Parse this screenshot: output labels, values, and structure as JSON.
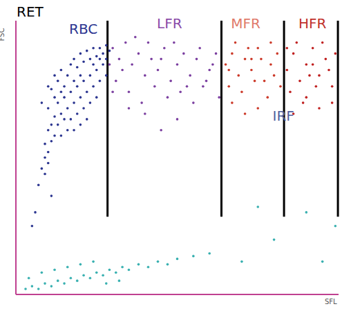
{
  "chart_data": {
    "type": "scatter",
    "title": "RET",
    "x_label": "SFL",
    "y_label": "FSC",
    "xlim": [
      0,
      100
    ],
    "ylim": [
      0,
      100
    ],
    "xticks": [
      0,
      20,
      40,
      60,
      80,
      100
    ],
    "yticks": [
      0,
      10,
      20,
      30,
      40,
      50,
      60,
      70,
      80,
      90,
      100
    ],
    "tick_labels": false,
    "grid": false,
    "gates": {
      "x": [
        28.4,
        63.7,
        83.1,
        99.8
      ],
      "y_range": [
        28.4,
        100
      ],
      "color": "#000000"
    },
    "series": [
      {
        "name": "RBC",
        "color": "#2b3590",
        "label_at": [
          20.9,
          97
        ],
        "points": [
          [
            10,
            60
          ],
          [
            11,
            62
          ],
          [
            12,
            65
          ],
          [
            10,
            68
          ],
          [
            13,
            70
          ],
          [
            12,
            72
          ],
          [
            14,
            74
          ],
          [
            11,
            75
          ],
          [
            15,
            76
          ],
          [
            13,
            78
          ],
          [
            16,
            80
          ],
          [
            14,
            82
          ],
          [
            17,
            84
          ],
          [
            18,
            86
          ],
          [
            20,
            88
          ],
          [
            22,
            89
          ],
          [
            24,
            90
          ],
          [
            26,
            90
          ],
          [
            28,
            91
          ],
          [
            19,
            83
          ],
          [
            21,
            85
          ],
          [
            23,
            86
          ],
          [
            25,
            87
          ],
          [
            27,
            88
          ],
          [
            15,
            72
          ],
          [
            17,
            74
          ],
          [
            19,
            76
          ],
          [
            21,
            78
          ],
          [
            23,
            80
          ],
          [
            25,
            82
          ],
          [
            27,
            84
          ],
          [
            16,
            68
          ],
          [
            18,
            70
          ],
          [
            20,
            72
          ],
          [
            22,
            74
          ],
          [
            24,
            76
          ],
          [
            26,
            78
          ],
          [
            28,
            80
          ],
          [
            17,
            64
          ],
          [
            19,
            66
          ],
          [
            21,
            68
          ],
          [
            23,
            70
          ],
          [
            25,
            72
          ],
          [
            18,
            60
          ],
          [
            20,
            62
          ],
          [
            22,
            64
          ],
          [
            9,
            55
          ],
          [
            9,
            50
          ],
          [
            10,
            52
          ],
          [
            11,
            56
          ],
          [
            8,
            46
          ],
          [
            9,
            44
          ],
          [
            10,
            48
          ],
          [
            12,
            58
          ],
          [
            13,
            62
          ],
          [
            14,
            66
          ],
          [
            15,
            64
          ],
          [
            16,
            60
          ],
          [
            14,
            58
          ],
          [
            24,
            84
          ],
          [
            26,
            86
          ],
          [
            20,
            80
          ],
          [
            18,
            78
          ],
          [
            12,
            80
          ],
          [
            10,
            76
          ],
          [
            8,
            70
          ],
          [
            7,
            40
          ],
          [
            6,
            30
          ],
          [
            5,
            25
          ],
          [
            11,
            36
          ],
          [
            28,
            86
          ],
          [
            29,
            89
          ]
        ]
      },
      {
        "name": "LFR",
        "color": "#7b3fa0",
        "label_at": [
          47.6,
          99
        ],
        "points": [
          [
            30,
            90
          ],
          [
            32,
            86
          ],
          [
            34,
            92
          ],
          [
            36,
            84
          ],
          [
            38,
            88
          ],
          [
            40,
            80
          ],
          [
            42,
            86
          ],
          [
            44,
            82
          ],
          [
            46,
            90
          ],
          [
            48,
            78
          ],
          [
            50,
            84
          ],
          [
            52,
            88
          ],
          [
            54,
            80
          ],
          [
            56,
            86
          ],
          [
            58,
            76
          ],
          [
            60,
            82
          ],
          [
            62,
            88
          ],
          [
            31,
            78
          ],
          [
            35,
            74
          ],
          [
            39,
            70
          ],
          [
            43,
            76
          ],
          [
            47,
            72
          ],
          [
            51,
            74
          ],
          [
            55,
            70
          ],
          [
            59,
            78
          ],
          [
            63,
            72
          ],
          [
            33,
            82
          ],
          [
            37,
            94
          ],
          [
            41,
            92
          ],
          [
            45,
            86
          ],
          [
            49,
            92
          ],
          [
            53,
            76
          ],
          [
            57,
            90
          ],
          [
            61,
            84
          ],
          [
            29,
            84
          ],
          [
            30,
            74
          ],
          [
            40,
            66
          ],
          [
            50,
            64
          ],
          [
            45,
            60
          ],
          [
            35,
            68
          ]
        ]
      },
      {
        "name": "MFR",
        "color": "#cc3a2a",
        "label_at": [
          71.2,
          99
        ],
        "points": [
          [
            65,
            84
          ],
          [
            67,
            88
          ],
          [
            69,
            80
          ],
          [
            71,
            86
          ],
          [
            73,
            82
          ],
          [
            75,
            90
          ],
          [
            77,
            78
          ],
          [
            79,
            84
          ],
          [
            81,
            88
          ],
          [
            66,
            76
          ],
          [
            68,
            92
          ],
          [
            70,
            74
          ],
          [
            72,
            90
          ],
          [
            74,
            78
          ],
          [
            76,
            86
          ],
          [
            78,
            72
          ],
          [
            80,
            80
          ],
          [
            82,
            76
          ],
          [
            67,
            70
          ],
          [
            71,
            66
          ],
          [
            75,
            68
          ],
          [
            79,
            92
          ],
          [
            66,
            82
          ],
          [
            73,
            86
          ]
        ]
      },
      {
        "name": "HFR",
        "color": "#c02020",
        "label_at": [
          91.9,
          99
        ],
        "points": [
          [
            84,
            82
          ],
          [
            86,
            88
          ],
          [
            88,
            78
          ],
          [
            90,
            84
          ],
          [
            92,
            90
          ],
          [
            94,
            80
          ],
          [
            96,
            86
          ],
          [
            98,
            76
          ],
          [
            85,
            74
          ],
          [
            87,
            92
          ],
          [
            89,
            70
          ],
          [
            91,
            80
          ],
          [
            93,
            76
          ],
          [
            95,
            92
          ],
          [
            97,
            82
          ],
          [
            99,
            88
          ],
          [
            86,
            66
          ],
          [
            90,
            72
          ],
          [
            94,
            68
          ],
          [
            98,
            70
          ],
          [
            84,
            90
          ],
          [
            92,
            84
          ]
        ]
      },
      {
        "color": "#38b0b0",
        "points": [
          [
            3,
            2
          ],
          [
            5,
            3
          ],
          [
            7,
            2
          ],
          [
            9,
            4
          ],
          [
            11,
            3
          ],
          [
            13,
            5
          ],
          [
            15,
            4
          ],
          [
            17,
            6
          ],
          [
            19,
            5
          ],
          [
            21,
            7
          ],
          [
            23,
            6
          ],
          [
            25,
            8
          ],
          [
            27,
            7
          ],
          [
            29,
            9
          ],
          [
            31,
            8
          ],
          [
            33,
            10
          ],
          [
            35,
            9
          ],
          [
            38,
            11
          ],
          [
            41,
            10
          ],
          [
            44,
            12
          ],
          [
            47,
            11
          ],
          [
            50,
            13
          ],
          [
            8,
            8
          ],
          [
            12,
            9
          ],
          [
            16,
            10
          ],
          [
            20,
            11
          ],
          [
            24,
            12
          ],
          [
            4,
            6
          ],
          [
            28,
            4
          ],
          [
            32,
            5
          ],
          [
            55,
            14
          ],
          [
            60,
            15
          ],
          [
            70,
            12
          ],
          [
            80,
            20
          ],
          [
            99,
            25
          ],
          [
            90,
            30
          ],
          [
            75,
            32
          ],
          [
            95,
            12
          ]
        ]
      }
    ],
    "annotations": [
      {
        "text": "IRF",
        "x": 82.9,
        "y": 65.3,
        "color": "#5060a0"
      }
    ]
  }
}
